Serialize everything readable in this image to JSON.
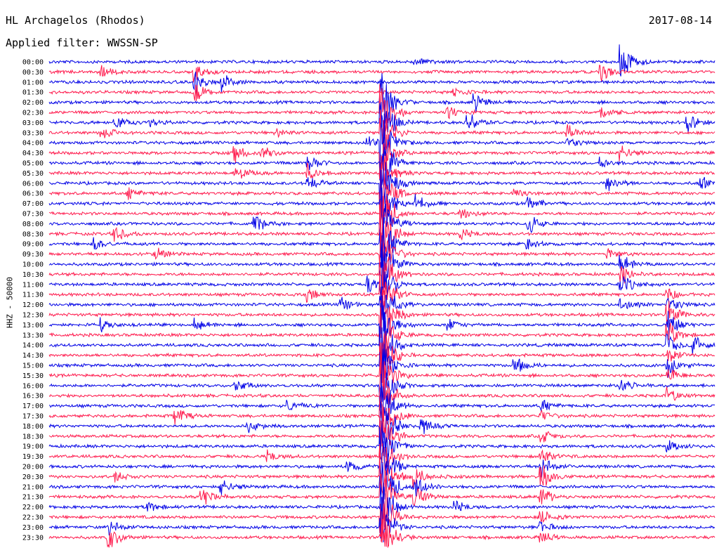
{
  "header": {
    "station": "HL Archagelos (Rhodos)",
    "filter": "Applied filter: WWSSN-SP",
    "date": "2017-08-14",
    "channel_label": "HHZ - 50000"
  },
  "colors": {
    "odd": "#0000e6",
    "even": "#ff1a4d"
  },
  "chart_data": {
    "type": "line",
    "title": "HL Archagelos (Rhodos)",
    "subtitle": "Applied filter: WWSSN-SP",
    "ylabel": "HHZ - 50000",
    "xlabel": "",
    "categories": [
      "00:00",
      "00:30",
      "01:00",
      "01:30",
      "02:00",
      "02:30",
      "03:00",
      "03:30",
      "04:00",
      "04:30",
      "05:00",
      "05:30",
      "06:00",
      "06:30",
      "07:00",
      "07:30",
      "08:00",
      "08:30",
      "09:00",
      "09:30",
      "10:00",
      "10:30",
      "11:00",
      "11:30",
      "12:00",
      "12:30",
      "13:00",
      "13:30",
      "14:00",
      "14:30",
      "15:00",
      "15:30",
      "16:00",
      "16:30",
      "17:00",
      "17:30",
      "18:00",
      "18:30",
      "19:00",
      "19:30",
      "20:00",
      "20:30",
      "21:00",
      "21:30",
      "22:00",
      "22:30",
      "23:00",
      "23:30"
    ],
    "series": [
      {
        "events": [
          {
            "t": 0.86,
            "a": 38
          },
          {
            "t": 0.55,
            "a": 8
          }
        ]
      },
      {
        "events": [
          {
            "t": 0.08,
            "a": 10
          },
          {
            "t": 0.22,
            "a": 14
          },
          {
            "t": 0.83,
            "a": 16
          }
        ]
      },
      {
        "events": [
          {
            "t": 0.26,
            "a": 16
          },
          {
            "t": 0.22,
            "a": 20
          }
        ]
      },
      {
        "events": [
          {
            "t": 0.22,
            "a": 18
          },
          {
            "t": 0.61,
            "a": 10
          }
        ]
      },
      {
        "events": [
          {
            "t": 0.5,
            "a": 60
          },
          {
            "t": 0.64,
            "a": 14
          }
        ]
      },
      {
        "events": [
          {
            "t": 0.5,
            "a": 60
          },
          {
            "t": 0.6,
            "a": 12
          },
          {
            "t": 0.83,
            "a": 14
          }
        ]
      },
      {
        "events": [
          {
            "t": 0.1,
            "a": 12
          },
          {
            "t": 0.15,
            "a": 8
          },
          {
            "t": 0.5,
            "a": 60
          },
          {
            "t": 0.63,
            "a": 18
          },
          {
            "t": 0.96,
            "a": 16
          }
        ]
      },
      {
        "events": [
          {
            "t": 0.08,
            "a": 12
          },
          {
            "t": 0.34,
            "a": 10
          },
          {
            "t": 0.5,
            "a": 60
          },
          {
            "t": 0.78,
            "a": 14
          }
        ]
      },
      {
        "events": [
          {
            "t": 0.48,
            "a": 10
          },
          {
            "t": 0.5,
            "a": 60
          },
          {
            "t": 0.78,
            "a": 12
          }
        ]
      },
      {
        "events": [
          {
            "t": 0.28,
            "a": 16
          },
          {
            "t": 0.32,
            "a": 12
          },
          {
            "t": 0.5,
            "a": 60
          },
          {
            "t": 0.86,
            "a": 16
          }
        ]
      },
      {
        "events": [
          {
            "t": 0.39,
            "a": 16
          },
          {
            "t": 0.5,
            "a": 60
          },
          {
            "t": 0.83,
            "a": 12
          }
        ]
      },
      {
        "events": [
          {
            "t": 0.28,
            "a": 18
          },
          {
            "t": 0.39,
            "a": 14
          },
          {
            "t": 0.5,
            "a": 60
          }
        ]
      },
      {
        "events": [
          {
            "t": 0.39,
            "a": 12
          },
          {
            "t": 0.5,
            "a": 60
          },
          {
            "t": 0.84,
            "a": 18
          },
          {
            "t": 0.98,
            "a": 12
          }
        ]
      },
      {
        "events": [
          {
            "t": 0.12,
            "a": 10
          },
          {
            "t": 0.5,
            "a": 60
          },
          {
            "t": 0.7,
            "a": 8
          }
        ]
      },
      {
        "events": [
          {
            "t": 0.55,
            "a": 18
          },
          {
            "t": 0.5,
            "a": 60
          },
          {
            "t": 0.72,
            "a": 14
          }
        ]
      },
      {
        "events": [
          {
            "t": 0.62,
            "a": 12
          },
          {
            "t": 0.5,
            "a": 60
          }
        ]
      },
      {
        "events": [
          {
            "t": 0.31,
            "a": 14
          },
          {
            "t": 0.5,
            "a": 60
          },
          {
            "t": 0.72,
            "a": 18
          }
        ]
      },
      {
        "events": [
          {
            "t": 0.1,
            "a": 16
          },
          {
            "t": 0.5,
            "a": 60
          },
          {
            "t": 0.62,
            "a": 10
          }
        ]
      },
      {
        "events": [
          {
            "t": 0.07,
            "a": 10
          },
          {
            "t": 0.5,
            "a": 60
          },
          {
            "t": 0.72,
            "a": 10
          }
        ]
      },
      {
        "events": [
          {
            "t": 0.16,
            "a": 12
          },
          {
            "t": 0.5,
            "a": 60
          },
          {
            "t": 0.84,
            "a": 10
          }
        ]
      },
      {
        "events": [
          {
            "t": 0.5,
            "a": 60
          },
          {
            "t": 0.86,
            "a": 16
          }
        ]
      },
      {
        "events": [
          {
            "t": 0.5,
            "a": 60
          },
          {
            "t": 0.86,
            "a": 18
          }
        ]
      },
      {
        "events": [
          {
            "t": 0.48,
            "a": 14
          },
          {
            "t": 0.5,
            "a": 60
          },
          {
            "t": 0.86,
            "a": 18
          }
        ]
      },
      {
        "events": [
          {
            "t": 0.39,
            "a": 10
          },
          {
            "t": 0.5,
            "a": 60
          },
          {
            "t": 0.93,
            "a": 12
          }
        ]
      },
      {
        "events": [
          {
            "t": 0.44,
            "a": 12
          },
          {
            "t": 0.5,
            "a": 60
          },
          {
            "t": 0.86,
            "a": 14
          },
          {
            "t": 0.93,
            "a": 20
          }
        ]
      },
      {
        "events": [
          {
            "t": 0.5,
            "a": 60
          },
          {
            "t": 0.93,
            "a": 24
          }
        ]
      },
      {
        "events": [
          {
            "t": 0.08,
            "a": 10
          },
          {
            "t": 0.22,
            "a": 10
          },
          {
            "t": 0.5,
            "a": 60
          },
          {
            "t": 0.6,
            "a": 10
          },
          {
            "t": 0.93,
            "a": 26
          }
        ]
      },
      {
        "events": [
          {
            "t": 0.5,
            "a": 60
          },
          {
            "t": 0.93,
            "a": 24
          }
        ]
      },
      {
        "events": [
          {
            "t": 0.5,
            "a": 60
          },
          {
            "t": 0.93,
            "a": 20
          },
          {
            "t": 0.97,
            "a": 14
          }
        ]
      },
      {
        "events": [
          {
            "t": 0.5,
            "a": 60
          },
          {
            "t": 0.93,
            "a": 16
          }
        ]
      },
      {
        "events": [
          {
            "t": 0.5,
            "a": 60
          },
          {
            "t": 0.7,
            "a": 18
          },
          {
            "t": 0.93,
            "a": 18
          }
        ]
      },
      {
        "events": [
          {
            "t": 0.5,
            "a": 60
          },
          {
            "t": 0.93,
            "a": 14
          }
        ]
      },
      {
        "events": [
          {
            "t": 0.28,
            "a": 12
          },
          {
            "t": 0.5,
            "a": 60
          },
          {
            "t": 0.86,
            "a": 12
          }
        ]
      },
      {
        "events": [
          {
            "t": 0.5,
            "a": 60
          },
          {
            "t": 0.93,
            "a": 14
          }
        ]
      },
      {
        "events": [
          {
            "t": 0.36,
            "a": 12
          },
          {
            "t": 0.5,
            "a": 60
          },
          {
            "t": 0.74,
            "a": 10
          }
        ]
      },
      {
        "events": [
          {
            "t": 0.19,
            "a": 14
          },
          {
            "t": 0.5,
            "a": 60
          },
          {
            "t": 0.74,
            "a": 10
          }
        ]
      },
      {
        "events": [
          {
            "t": 0.3,
            "a": 10
          },
          {
            "t": 0.5,
            "a": 60
          },
          {
            "t": 0.56,
            "a": 14
          }
        ]
      },
      {
        "events": [
          {
            "t": 0.5,
            "a": 60
          },
          {
            "t": 0.74,
            "a": 12
          }
        ]
      },
      {
        "events": [
          {
            "t": 0.5,
            "a": 60
          },
          {
            "t": 0.93,
            "a": 10
          }
        ]
      },
      {
        "events": [
          {
            "t": 0.33,
            "a": 10
          },
          {
            "t": 0.5,
            "a": 60
          },
          {
            "t": 0.74,
            "a": 16
          }
        ]
      },
      {
        "events": [
          {
            "t": 0.45,
            "a": 12
          },
          {
            "t": 0.5,
            "a": 60
          },
          {
            "t": 0.74,
            "a": 20
          }
        ]
      },
      {
        "events": [
          {
            "t": 0.1,
            "a": 10
          },
          {
            "t": 0.5,
            "a": 60
          },
          {
            "t": 0.55,
            "a": 18
          },
          {
            "t": 0.74,
            "a": 22
          }
        ]
      },
      {
        "events": [
          {
            "t": 0.26,
            "a": 16
          },
          {
            "t": 0.5,
            "a": 60
          },
          {
            "t": 0.55,
            "a": 22
          }
        ]
      },
      {
        "events": [
          {
            "t": 0.23,
            "a": 20
          },
          {
            "t": 0.5,
            "a": 60
          },
          {
            "t": 0.55,
            "a": 20
          },
          {
            "t": 0.74,
            "a": 16
          }
        ]
      },
      {
        "events": [
          {
            "t": 0.15,
            "a": 10
          },
          {
            "t": 0.5,
            "a": 60
          },
          {
            "t": 0.61,
            "a": 12
          }
        ]
      },
      {
        "events": [
          {
            "t": 0.5,
            "a": 60
          },
          {
            "t": 0.74,
            "a": 14
          }
        ]
      },
      {
        "events": [
          {
            "t": 0.09,
            "a": 16
          },
          {
            "t": 0.5,
            "a": 60
          },
          {
            "t": 0.74,
            "a": 10
          }
        ]
      },
      {
        "events": [
          {
            "t": 0.09,
            "a": 22
          },
          {
            "t": 0.5,
            "a": 60
          },
          {
            "t": 0.74,
            "a": 12
          }
        ]
      }
    ],
    "grid": false,
    "legend": "none"
  }
}
